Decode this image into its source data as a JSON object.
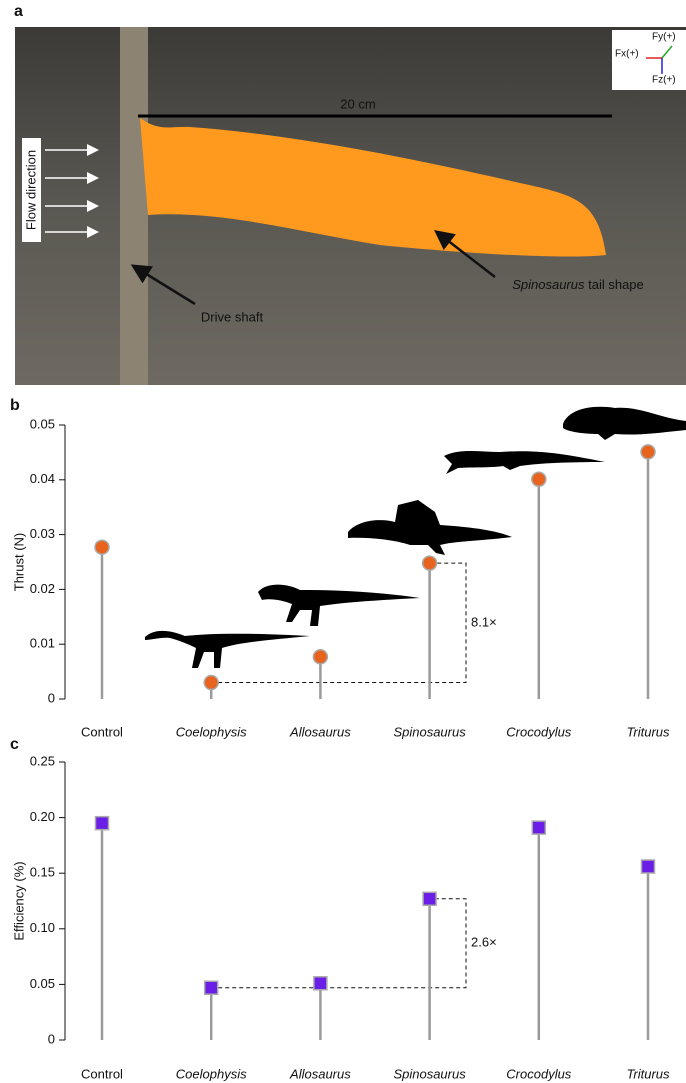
{
  "panel_a": {
    "panel_label": "a",
    "scale_label": "20 cm",
    "flow_label": "Flow direction",
    "shaft_label": "Drive shaft",
    "tail_species": "Spinosaurus",
    "tail_text": " tail shape",
    "force_x": "Fx(+)",
    "force_y": "Fy(+)",
    "force_z": "Fz(+)"
  },
  "chart_data": [
    {
      "type": "lollipop",
      "panel_label": "b",
      "y_label": "Thrust (N)",
      "marker": "circle",
      "color": "#e8641e",
      "categories": [
        "Control",
        "Coelophysis",
        "Allosaurus",
        "Spinosaurus",
        "Crocodylus",
        "Triturus"
      ],
      "values": [
        0.0277,
        0.003,
        0.0077,
        0.0248,
        0.0401,
        0.0451
      ],
      "ylim": [
        0,
        0.05
      ],
      "yticks": [
        0,
        0.01,
        0.02,
        0.03,
        0.04,
        0.05
      ],
      "annotation": "8.1×"
    },
    {
      "type": "lollipop",
      "panel_label": "c",
      "y_label": "Efficiency (%)",
      "marker": "square",
      "color": "#6a1ee8",
      "categories": [
        "Control",
        "Coelophysis",
        "Allosaurus",
        "Spinosaurus",
        "Crocodylus",
        "Triturus"
      ],
      "values": [
        0.195,
        0.047,
        0.051,
        0.127,
        0.191,
        0.156
      ],
      "ylim": [
        0,
        0.25
      ],
      "yticks": [
        0,
        0.05,
        {
          "value": 0.1,
          "label": "0.10"
        },
        0.15,
        {
          "value": 0.2,
          "label": "0.20"
        },
        0.25
      ],
      "annotation": "2.6×"
    }
  ]
}
